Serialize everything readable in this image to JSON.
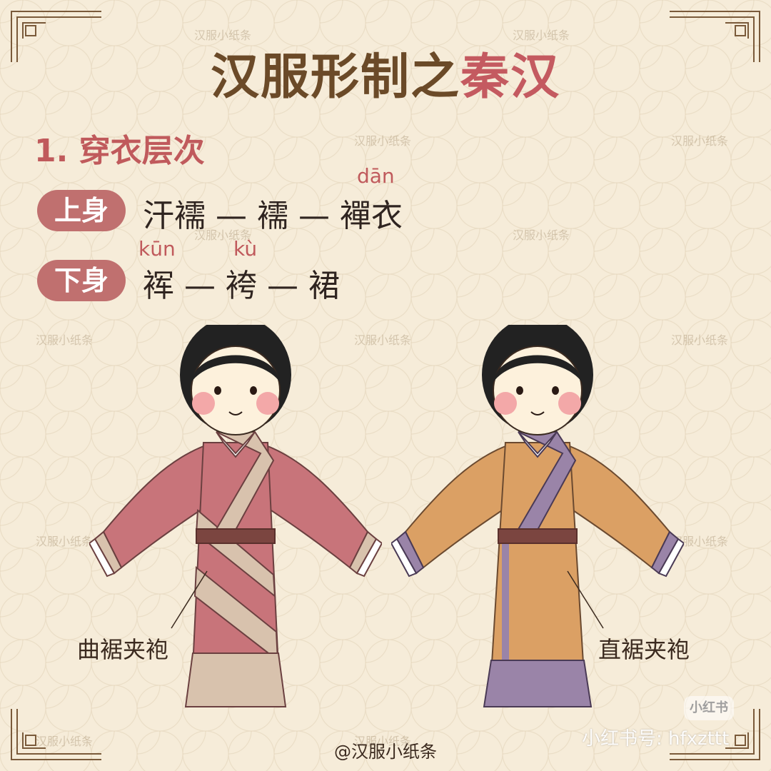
{
  "title": {
    "part1": "汉服形制之",
    "part2": "秦汉"
  },
  "section_heading": "1. 穿衣层次",
  "upper_body": {
    "pill": "上身",
    "sequence": "汗襦 — 襦 — 襌衣",
    "pinyin": "dān"
  },
  "lower_body": {
    "pill": "下身",
    "sequence": "裈 — 袴 — 裙",
    "pinyin_1": "kūn",
    "pinyin_2": "kù"
  },
  "figures": {
    "left_label": "曲裾夹袍",
    "right_label": "直裾夹袍",
    "left_colors": {
      "robe": "#c8747a",
      "trim": "#d8c2ad",
      "belt": "#7b4540"
    },
    "right_colors": {
      "robe": "#dba064",
      "trim": "#9a84a8",
      "belt": "#7b4540"
    }
  },
  "watermark": "汉服小纸条",
  "credit": "@汉服小纸条",
  "platform": {
    "badge": "小红书",
    "id_text": "小红书号: hfxzttt"
  }
}
